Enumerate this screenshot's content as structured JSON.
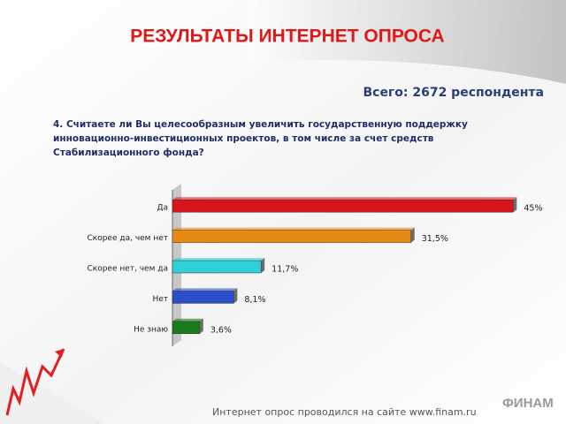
{
  "chart_data": {
    "type": "hbar",
    "title": "РЕЗУЛЬТАТЫ ИНТЕРНЕТ ОПРОСА",
    "subtitle": "Всего: 2672 респондента",
    "question": [
      "4. Считаете ли Вы целесообразным увеличить государственную поддержку",
      "инновационно-инвестиционных проектов, в том числе за счет средств",
      "Стабилизационного фонда?"
    ],
    "categories": [
      "Да",
      "Скорее да, чем нет",
      "Скорее нет, чем да",
      "Нет",
      "Не знаю"
    ],
    "values": [
      45,
      31.5,
      11.7,
      8.1,
      3.6
    ],
    "value_labels": [
      "45%",
      "31,5%",
      "11,7%",
      "8,1%",
      "3,6%"
    ],
    "colors": [
      "#d8141c",
      "#e88a12",
      "#2fd0d8",
      "#2a4fc8",
      "#1a7a1a"
    ],
    "xlim": [
      0,
      48
    ],
    "footer": "Интернет опрос проводился на сайте www.finam.ru",
    "logo": "ФИНАМ"
  }
}
